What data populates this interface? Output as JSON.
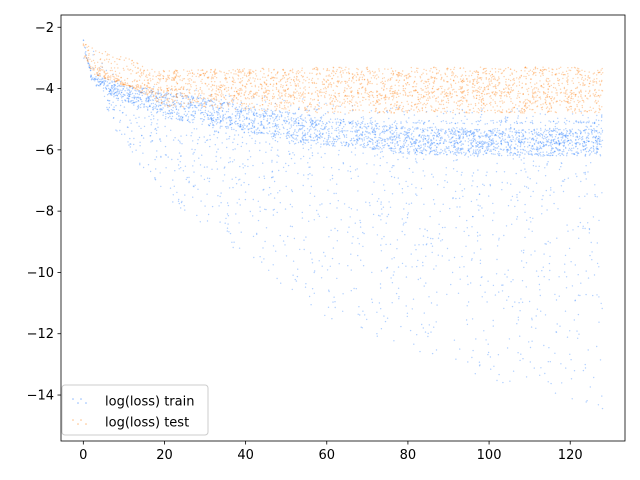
{
  "chart_data": {
    "type": "scatter",
    "title": "",
    "xlabel": "",
    "ylabel": "",
    "xlim": [
      -5.5,
      133.5
    ],
    "ylim": [
      -15.5,
      -1.6
    ],
    "x_ticks": [
      0,
      20,
      40,
      60,
      80,
      100,
      120
    ],
    "y_ticks": [
      -2,
      -4,
      -6,
      -8,
      -10,
      -12,
      -14
    ],
    "x_tick_labels": [
      "0",
      "20",
      "40",
      "60",
      "80",
      "100",
      "120"
    ],
    "y_tick_labels": [
      "−2",
      "−4",
      "−6",
      "−8",
      "−10",
      "−12",
      "−14"
    ],
    "grid": false,
    "legend_position": "lower-left",
    "series": [
      {
        "name": "log(loss) train",
        "color": "#1f77ff",
        "x_range": [
          0,
          128
        ],
        "median_y": [
          [
            0,
            -2.5
          ],
          [
            2,
            -3.6
          ],
          [
            10,
            -4.2
          ],
          [
            20,
            -4.5
          ],
          [
            40,
            -5.0
          ],
          [
            60,
            -5.4
          ],
          [
            80,
            -5.7
          ],
          [
            100,
            -5.75
          ],
          [
            128,
            -5.75
          ]
        ],
        "upper_y": [
          [
            0,
            -2.4
          ],
          [
            10,
            -3.8
          ],
          [
            40,
            -4.2
          ],
          [
            80,
            -4.6
          ],
          [
            128,
            -4.7
          ]
        ],
        "lower_y": [
          [
            0,
            -3.0
          ],
          [
            10,
            -6.0
          ],
          [
            20,
            -7.5
          ],
          [
            40,
            -9.5
          ],
          [
            60,
            -11.5
          ],
          [
            80,
            -12.5
          ],
          [
            100,
            -13.5
          ],
          [
            128,
            -14.5
          ]
        ],
        "bands_y": [
          -5.1,
          -5.75
        ]
      },
      {
        "name": "log(loss) test",
        "color": "#ff7f0e",
        "x_range": [
          0,
          128
        ],
        "median_y": [
          [
            0,
            -2.6
          ],
          [
            2,
            -3.5
          ],
          [
            10,
            -3.9
          ],
          [
            20,
            -4.0
          ],
          [
            40,
            -4.05
          ],
          [
            80,
            -4.1
          ],
          [
            128,
            -4.1
          ]
        ],
        "upper_y": [
          [
            0,
            -2.5
          ],
          [
            20,
            -3.4
          ],
          [
            60,
            -3.3
          ],
          [
            128,
            -3.3
          ]
        ],
        "lower_y": [
          [
            0,
            -3.0
          ],
          [
            20,
            -4.6
          ],
          [
            60,
            -4.8
          ],
          [
            128,
            -4.8
          ]
        ]
      }
    ]
  }
}
